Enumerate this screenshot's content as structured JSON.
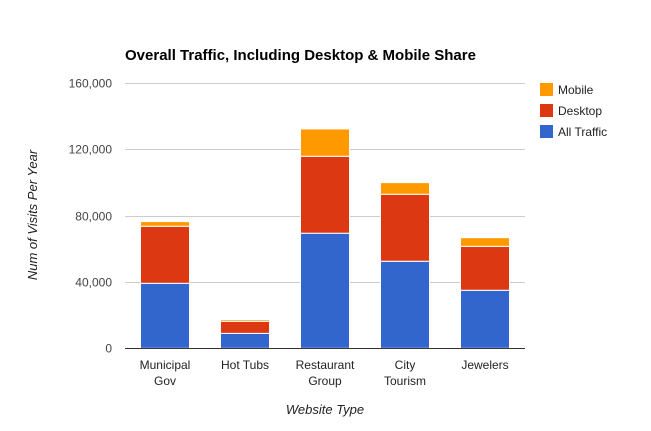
{
  "chart_data": {
    "type": "bar",
    "stacked": true,
    "title": "Overall Traffic, Including Desktop & Mobile Share",
    "xlabel": "Website Type",
    "ylabel": "Num of Visits Per Year",
    "ylim": [
      0,
      160000
    ],
    "yticks": [
      0,
      40000,
      80000,
      120000,
      160000
    ],
    "ytick_labels": [
      "0",
      "40,000",
      "80,000",
      "120,000",
      "160,000"
    ],
    "grid": true,
    "legend_position": "right",
    "categories": [
      [
        "Municipal",
        "Gov"
      ],
      [
        "Hot Tubs"
      ],
      [
        "Restaurant",
        "Group"
      ],
      [
        "City",
        "Tourism"
      ],
      [
        "Jewelers"
      ]
    ],
    "series": [
      {
        "name": "All Traffic",
        "color": "#3366cc",
        "values": [
          39200,
          9000,
          69400,
          52500,
          35000
        ]
      },
      {
        "name": "Desktop",
        "color": "#dc3912",
        "values": [
          34400,
          7300,
          46400,
          40400,
          26500
        ]
      },
      {
        "name": "Mobile",
        "color": "#ff9900",
        "values": [
          2800,
          1000,
          16500,
          7000,
          5200
        ]
      }
    ]
  }
}
